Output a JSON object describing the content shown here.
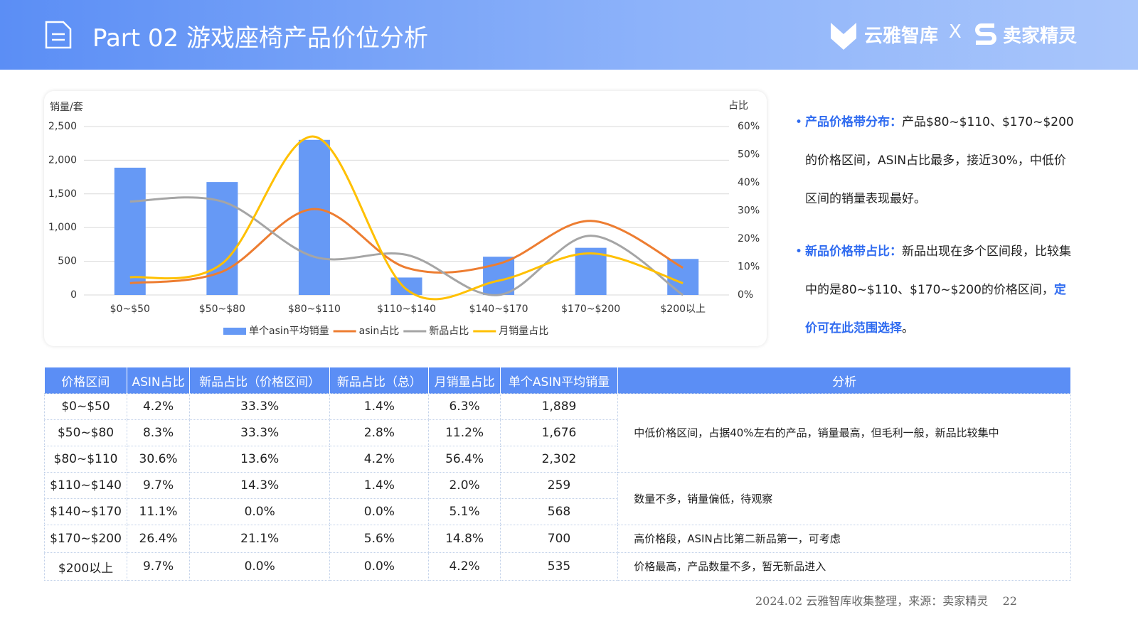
{
  "header": {
    "title": "Part 02 游戏座椅产品价位分析",
    "logo_left": "云雅智库",
    "separator": "X",
    "logo_right": "卖家精灵"
  },
  "chart_data": {
    "type": "bar",
    "y_axis_title": "销量/套",
    "y2_axis_title": "占比",
    "categories": [
      "$0~$50",
      "$50~$80",
      "$80~$110",
      "$110~$140",
      "$140~$170",
      "$170~$200",
      "$200以上"
    ],
    "series": [
      {
        "name": "单个asin平均销量",
        "color": "#6699f5",
        "type": "bar",
        "values": [
          1889,
          1676,
          2302,
          259,
          568,
          700,
          535
        ]
      },
      {
        "name": "asin占比",
        "color": "#ed7d31",
        "type": "line",
        "axis": "y2",
        "values": [
          4.2,
          8.3,
          30.6,
          9.7,
          11.1,
          26.4,
          9.7
        ]
      },
      {
        "name": "新品占比",
        "color": "#a5a5a5",
        "type": "line",
        "axis": "y2",
        "values": [
          33.3,
          33.3,
          13.6,
          14.3,
          0.0,
          21.1,
          0.0
        ]
      },
      {
        "name": "月销量占比",
        "color": "#ffc000",
        "type": "line",
        "axis": "y2",
        "values": [
          6.3,
          11.2,
          56.4,
          2.0,
          5.1,
          14.8,
          4.2
        ]
      }
    ],
    "ylim": [
      0,
      2500
    ],
    "yticks": [
      0,
      500,
      {
        "value": 1000,
        "label": "1,000"
      },
      {
        "value": 1500,
        "label": "1,500"
      },
      {
        "value": 2000,
        "label": "2,000"
      },
      {
        "value": 2500,
        "label": "2,500"
      }
    ],
    "y2lim": [
      0,
      60
    ],
    "y2ticks": [
      {
        "value": 0,
        "label": "0%"
      },
      {
        "value": 10,
        "label": "10%"
      },
      {
        "value": 20,
        "label": "20%"
      },
      {
        "value": 30,
        "label": "30%"
      },
      {
        "value": 40,
        "label": "40%"
      },
      {
        "value": 50,
        "label": "50%"
      },
      {
        "value": 60,
        "label": "60%"
      }
    ],
    "grid": true,
    "legend": "bottom"
  },
  "bullets": [
    {
      "label": "产品价格带分布：",
      "text": "产品$80~$110、$170~$200的价格区间，ASIN占比最多，接近30%，中低价区间的销量表现最好。"
    },
    {
      "label": "新品价格带占比：",
      "text": "新品出现在多个区间段，比较集中的是80~$110、$170~$200的价格区间，",
      "highlight": "定价可在此范围选择",
      "end": "。"
    }
  ],
  "table": {
    "header": [
      "价格区间",
      "ASIN占比",
      "新品占比（价格区间）",
      "新品占比（总）",
      "月销量占比",
      "单个ASIN平均销量",
      "分析"
    ],
    "rows": [
      [
        "$0~$50",
        "4.2%",
        "33.3%",
        "1.4%",
        "6.3%",
        "1,889"
      ],
      [
        "$50~$80",
        "8.3%",
        "33.3%",
        "2.8%",
        "11.2%",
        "1,676"
      ],
      [
        "$80~$110",
        "30.6%",
        "13.6%",
        "4.2%",
        "56.4%",
        "2,302"
      ],
      [
        "$110~$140",
        "9.7%",
        "14.3%",
        "1.4%",
        "2.0%",
        "259"
      ],
      [
        "$140~$170",
        "11.1%",
        "0.0%",
        "0.0%",
        "5.1%",
        "568"
      ],
      [
        "$170~$200",
        "26.4%",
        "21.1%",
        "5.6%",
        "14.8%",
        "700"
      ],
      [
        "$200以上",
        "9.7%",
        "0.0%",
        "0.0%",
        "4.2%",
        "535"
      ]
    ],
    "analysis": [
      "中低价格区间，占据40%左右的产品，销量最高，但毛利一般，新品比较集中",
      "数量不多，销量偏低，待观察",
      "高价格段，ASIN占比第二新品第一，可考虑",
      "价格最高，产品数量不多，暂无新品进入"
    ]
  },
  "footer": {
    "source": "2024.02 云雅智库收集整理，来源：卖家精灵",
    "page": "22"
  }
}
